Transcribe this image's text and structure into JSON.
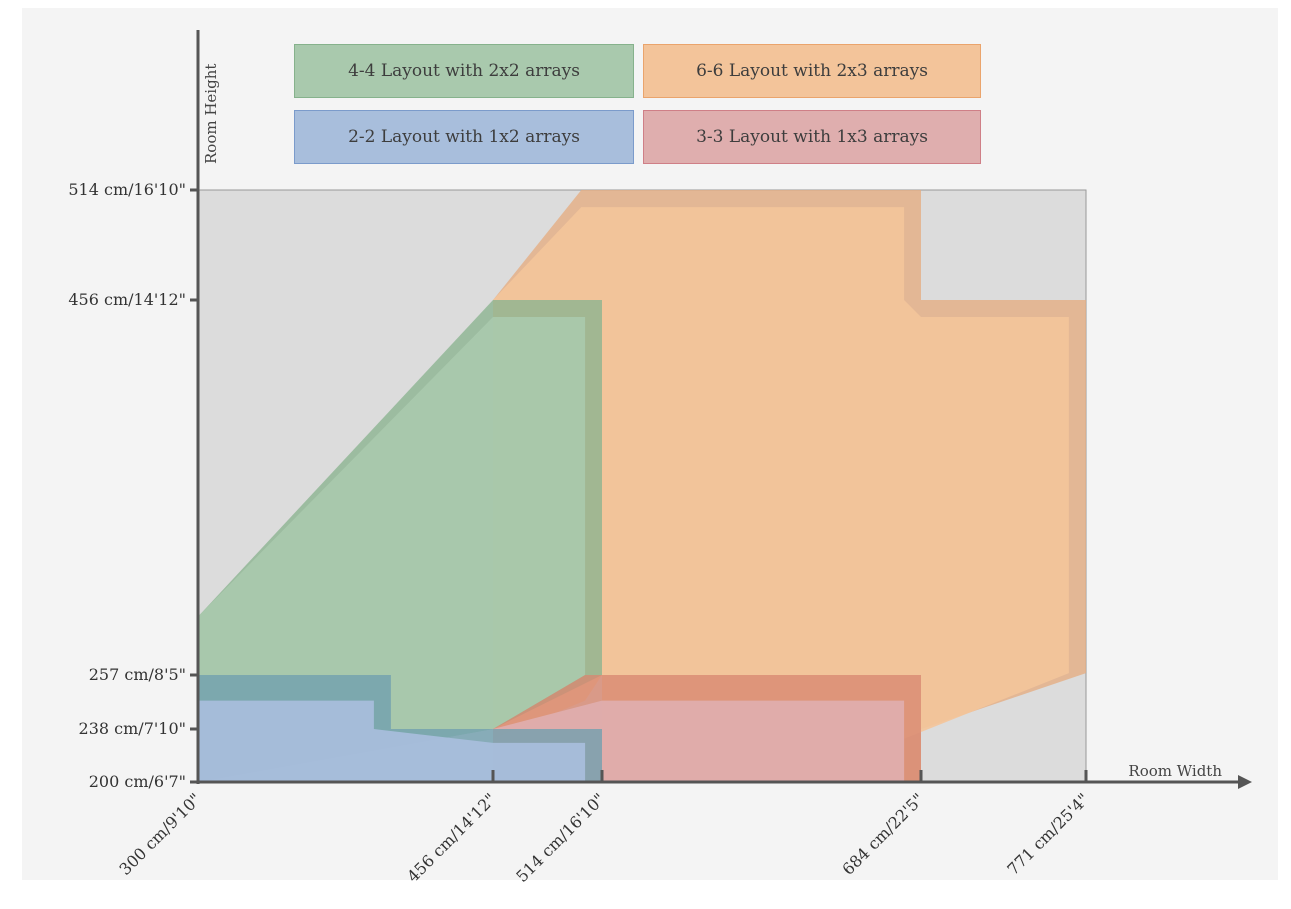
{
  "axes": {
    "y_title": "Room Height",
    "x_title": "Room Width",
    "y_ticks": [
      {
        "id": "y-tick-514",
        "value": 514,
        "label": "514 cm/16'10\""
      },
      {
        "id": "y-tick-456",
        "value": 456,
        "label": "456 cm/14'12\""
      },
      {
        "id": "y-tick-257",
        "value": 257,
        "label": "257 cm/8'5\""
      },
      {
        "id": "y-tick-238",
        "value": 238,
        "label": "238 cm/7'10\""
      },
      {
        "id": "y-tick-200",
        "value": 200,
        "label": "200 cm/6'7\""
      }
    ],
    "x_ticks": [
      {
        "id": "x-tick-300",
        "value": 300,
        "label": "300 cm/9'10\""
      },
      {
        "id": "x-tick-456",
        "value": 456,
        "label": "456 cm/14'12\""
      },
      {
        "id": "x-tick-514",
        "value": 514,
        "label": "514 cm/16'10\""
      },
      {
        "id": "x-tick-684",
        "value": 684,
        "label": "684 cm/22'5\""
      },
      {
        "id": "x-tick-771",
        "value": 771,
        "label": "771 cm/25'4\""
      }
    ]
  },
  "legend": {
    "green": "4-4 Layout with 2x2 arrays",
    "orange": "6-6 Layout with 2x3 arrays",
    "blue": "2-2 Layout with 1x2 arrays",
    "red": "3-3 Layout with 1x3 arrays"
  },
  "colors": {
    "background": "#f4f4f4",
    "plot_area": "#dcdcdc",
    "axis": "#555555",
    "green": "#a9c9ad",
    "green_band": "#8ab38f",
    "orange": "#f3c49a",
    "orange_band": "#e5ad82",
    "blue": "#a8bedc",
    "blue_band": "#6f9fae",
    "red": "#dfaeae",
    "red_band": "#d98871"
  },
  "layouts": [
    {
      "id": "orange",
      "band": "orange_band",
      "fill": "orange",
      "outer": [
        [
          354,
          514
        ],
        [
          684,
          514
        ],
        [
          684,
          456
        ],
        [
          771,
          456
        ],
        [
          771,
          258
        ],
        [
          684,
          238
        ],
        [
          684,
          200
        ],
        [
          514,
          200
        ],
        [
          514,
          257
        ],
        [
          456,
          238
        ],
        [
          456,
          456
        ],
        [
          503,
          514
        ]
      ],
      "inner": [
        [
          354,
          505
        ],
        [
          675,
          505
        ],
        [
          675,
          456
        ],
        [
          684,
          447
        ],
        [
          762,
          447
        ],
        [
          762,
          258
        ],
        [
          675,
          231
        ],
        [
          675,
          200
        ],
        [
          514,
          200
        ],
        [
          514,
          257
        ],
        [
          505,
          248
        ],
        [
          456,
          231
        ],
        [
          456,
          456
        ],
        [
          503,
          505
        ]
      ]
    },
    {
      "id": "green",
      "band": "green_band",
      "fill": "green",
      "outer": [
        [
          300,
          288
        ],
        [
          456,
          456
        ],
        [
          514,
          456
        ],
        [
          514,
          257
        ],
        [
          456,
          238
        ],
        [
          300,
          200
        ]
      ],
      "inner": [
        [
          300,
          288
        ],
        [
          456,
          447
        ],
        [
          505,
          447
        ],
        [
          505,
          257
        ],
        [
          456,
          238
        ],
        [
          300,
          200
        ]
      ]
    },
    {
      "id": "red",
      "band": "red_band",
      "fill": "red",
      "outer": [
        [
          456,
          238
        ],
        [
          505,
          257
        ],
        [
          684,
          257
        ],
        [
          684,
          200
        ],
        [
          456,
          200
        ]
      ],
      "inner": [
        [
          456,
          238
        ],
        [
          514,
          248
        ],
        [
          675,
          248
        ],
        [
          675,
          200
        ],
        [
          456,
          200
        ]
      ]
    },
    {
      "id": "blue",
      "band": "blue_band",
      "fill": "blue",
      "outer": [
        [
          300,
          257
        ],
        [
          402,
          257
        ],
        [
          402,
          238
        ],
        [
          456,
          238
        ],
        [
          514,
          238
        ],
        [
          514,
          200
        ],
        [
          300,
          200
        ]
      ],
      "inner": [
        [
          300,
          248
        ],
        [
          393,
          248
        ],
        [
          393,
          238
        ],
        [
          456,
          228
        ],
        [
          505,
          228
        ],
        [
          505,
          200
        ],
        [
          300,
          200
        ]
      ]
    }
  ]
}
